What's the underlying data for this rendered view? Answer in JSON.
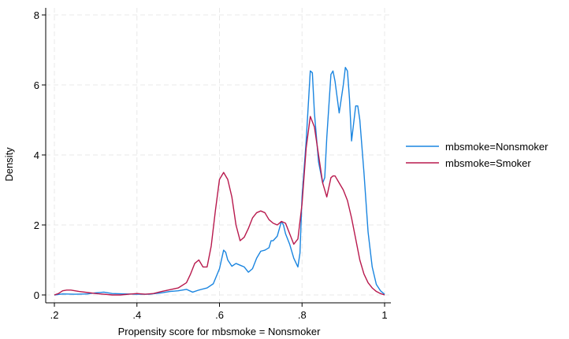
{
  "chart_data": {
    "type": "line",
    "title": "",
    "xlabel": "Propensity score for mbsmoke = Nonsmoker",
    "ylabel": "Density",
    "xlim": [
      0.2,
      1.01
    ],
    "ylim": [
      0,
      8
    ],
    "x_ticks": [
      0.2,
      0.4,
      0.6,
      0.8,
      1.0
    ],
    "x_tick_labels": [
      ".2",
      ".4",
      ".6",
      ".8",
      "1"
    ],
    "y_ticks": [
      0,
      2,
      4,
      6,
      8
    ],
    "y_tick_labels": [
      "0",
      "2",
      "4",
      "6",
      "8"
    ],
    "grid": true,
    "legend": "right",
    "series": [
      {
        "name": "mbsmoke=Nonsmoker",
        "color": "#1a85e0",
        "points": [
          [
            0.2,
            0.0
          ],
          [
            0.22,
            0.03
          ],
          [
            0.25,
            0.02
          ],
          [
            0.28,
            0.03
          ],
          [
            0.3,
            0.06
          ],
          [
            0.32,
            0.08
          ],
          [
            0.34,
            0.04
          ],
          [
            0.37,
            0.03
          ],
          [
            0.4,
            0.02
          ],
          [
            0.43,
            0.02
          ],
          [
            0.46,
            0.06
          ],
          [
            0.48,
            0.1
          ],
          [
            0.5,
            0.12
          ],
          [
            0.52,
            0.16
          ],
          [
            0.535,
            0.08
          ],
          [
            0.55,
            0.14
          ],
          [
            0.57,
            0.2
          ],
          [
            0.585,
            0.32
          ],
          [
            0.6,
            0.75
          ],
          [
            0.61,
            1.28
          ],
          [
            0.615,
            1.22
          ],
          [
            0.62,
            1.0
          ],
          [
            0.63,
            0.82
          ],
          [
            0.64,
            0.9
          ],
          [
            0.65,
            0.85
          ],
          [
            0.66,
            0.8
          ],
          [
            0.67,
            0.65
          ],
          [
            0.68,
            0.75
          ],
          [
            0.69,
            1.05
          ],
          [
            0.7,
            1.25
          ],
          [
            0.71,
            1.28
          ],
          [
            0.72,
            1.35
          ],
          [
            0.725,
            1.55
          ],
          [
            0.73,
            1.55
          ],
          [
            0.74,
            1.68
          ],
          [
            0.75,
            2.1
          ],
          [
            0.755,
            2.0
          ],
          [
            0.76,
            1.75
          ],
          [
            0.77,
            1.45
          ],
          [
            0.78,
            1.05
          ],
          [
            0.79,
            0.8
          ],
          [
            0.795,
            1.2
          ],
          [
            0.8,
            2.8
          ],
          [
            0.81,
            4.4
          ],
          [
            0.82,
            6.4
          ],
          [
            0.825,
            6.35
          ],
          [
            0.83,
            5.2
          ],
          [
            0.84,
            3.8
          ],
          [
            0.85,
            3.2
          ],
          [
            0.855,
            3.35
          ],
          [
            0.86,
            4.5
          ],
          [
            0.87,
            6.3
          ],
          [
            0.875,
            6.4
          ],
          [
            0.88,
            6.1
          ],
          [
            0.89,
            5.2
          ],
          [
            0.9,
            6.0
          ],
          [
            0.905,
            6.5
          ],
          [
            0.91,
            6.4
          ],
          [
            0.915,
            5.6
          ],
          [
            0.92,
            4.4
          ],
          [
            0.93,
            5.4
          ],
          [
            0.935,
            5.4
          ],
          [
            0.94,
            5.0
          ],
          [
            0.95,
            3.5
          ],
          [
            0.96,
            1.8
          ],
          [
            0.97,
            0.8
          ],
          [
            0.98,
            0.3
          ],
          [
            0.99,
            0.12
          ],
          [
            1.0,
            0.02
          ]
        ]
      },
      {
        "name": "mbsmoke=Smoker",
        "color": "#b8194d",
        "points": [
          [
            0.2,
            0.0
          ],
          [
            0.21,
            0.04
          ],
          [
            0.22,
            0.12
          ],
          [
            0.23,
            0.14
          ],
          [
            0.24,
            0.14
          ],
          [
            0.26,
            0.1
          ],
          [
            0.28,
            0.07
          ],
          [
            0.3,
            0.04
          ],
          [
            0.32,
            0.02
          ],
          [
            0.34,
            0.0
          ],
          [
            0.36,
            0.0
          ],
          [
            0.38,
            0.02
          ],
          [
            0.4,
            0.04
          ],
          [
            0.42,
            0.02
          ],
          [
            0.44,
            0.04
          ],
          [
            0.46,
            0.1
          ],
          [
            0.48,
            0.15
          ],
          [
            0.5,
            0.2
          ],
          [
            0.52,
            0.35
          ],
          [
            0.53,
            0.6
          ],
          [
            0.54,
            0.9
          ],
          [
            0.55,
            1.0
          ],
          [
            0.56,
            0.8
          ],
          [
            0.57,
            0.8
          ],
          [
            0.58,
            1.4
          ],
          [
            0.59,
            2.4
          ],
          [
            0.6,
            3.3
          ],
          [
            0.61,
            3.5
          ],
          [
            0.62,
            3.3
          ],
          [
            0.63,
            2.8
          ],
          [
            0.64,
            2.0
          ],
          [
            0.65,
            1.55
          ],
          [
            0.66,
            1.65
          ],
          [
            0.67,
            1.9
          ],
          [
            0.68,
            2.2
          ],
          [
            0.69,
            2.35
          ],
          [
            0.7,
            2.4
          ],
          [
            0.71,
            2.35
          ],
          [
            0.72,
            2.15
          ],
          [
            0.73,
            2.05
          ],
          [
            0.74,
            2.0
          ],
          [
            0.75,
            2.1
          ],
          [
            0.76,
            2.05
          ],
          [
            0.77,
            1.75
          ],
          [
            0.78,
            1.45
          ],
          [
            0.79,
            1.6
          ],
          [
            0.8,
            2.6
          ],
          [
            0.81,
            4.2
          ],
          [
            0.82,
            5.1
          ],
          [
            0.83,
            4.8
          ],
          [
            0.84,
            4.0
          ],
          [
            0.85,
            3.2
          ],
          [
            0.86,
            2.8
          ],
          [
            0.87,
            3.35
          ],
          [
            0.875,
            3.4
          ],
          [
            0.88,
            3.4
          ],
          [
            0.89,
            3.2
          ],
          [
            0.9,
            3.0
          ],
          [
            0.91,
            2.7
          ],
          [
            0.92,
            2.2
          ],
          [
            0.93,
            1.6
          ],
          [
            0.94,
            1.0
          ],
          [
            0.95,
            0.6
          ],
          [
            0.96,
            0.35
          ],
          [
            0.97,
            0.2
          ],
          [
            0.98,
            0.1
          ],
          [
            0.99,
            0.04
          ],
          [
            1.0,
            0.0
          ]
        ]
      }
    ]
  }
}
